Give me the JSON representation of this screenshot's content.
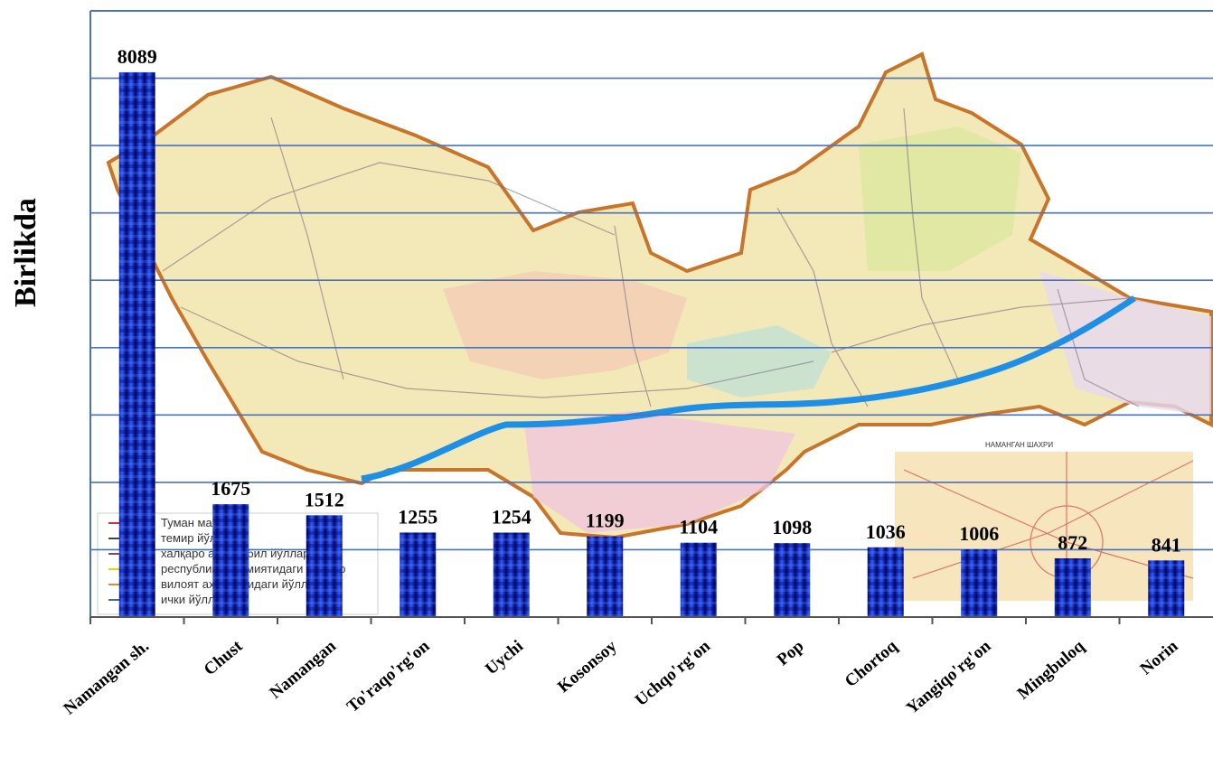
{
  "chart_data": {
    "type": "bar",
    "title": "",
    "ylabel": "Birlikda",
    "xlabel": "",
    "categories": [
      "Namangan sh.",
      "Chust",
      "Namangan",
      "To'raqo'rg'on",
      "Uychi",
      "Kosonsoy",
      "Uchqo'rg'on",
      "Pop",
      "Chortoq",
      "Yangiqo'rg'on",
      "Mingbuloq",
      "Norin"
    ],
    "values": [
      8089,
      1675,
      1512,
      1255,
      1254,
      1199,
      1104,
      1098,
      1036,
      1006,
      872,
      841
    ],
    "ylim": [
      0,
      9000
    ],
    "grid": true,
    "bar_color": "#1a2fd6",
    "grid_color": "#4a72b8"
  },
  "background_map": {
    "legend_lines": [
      "Туман марказ",
      "темир йўл",
      "халқаро автомобил йўллари",
      "республика аҳамиятидаги йўллар",
      "вилоят аҳамиятидаги йўллар",
      "ички йўллар"
    ],
    "inset_title": "НАМАНГАН ШАХРИ"
  }
}
